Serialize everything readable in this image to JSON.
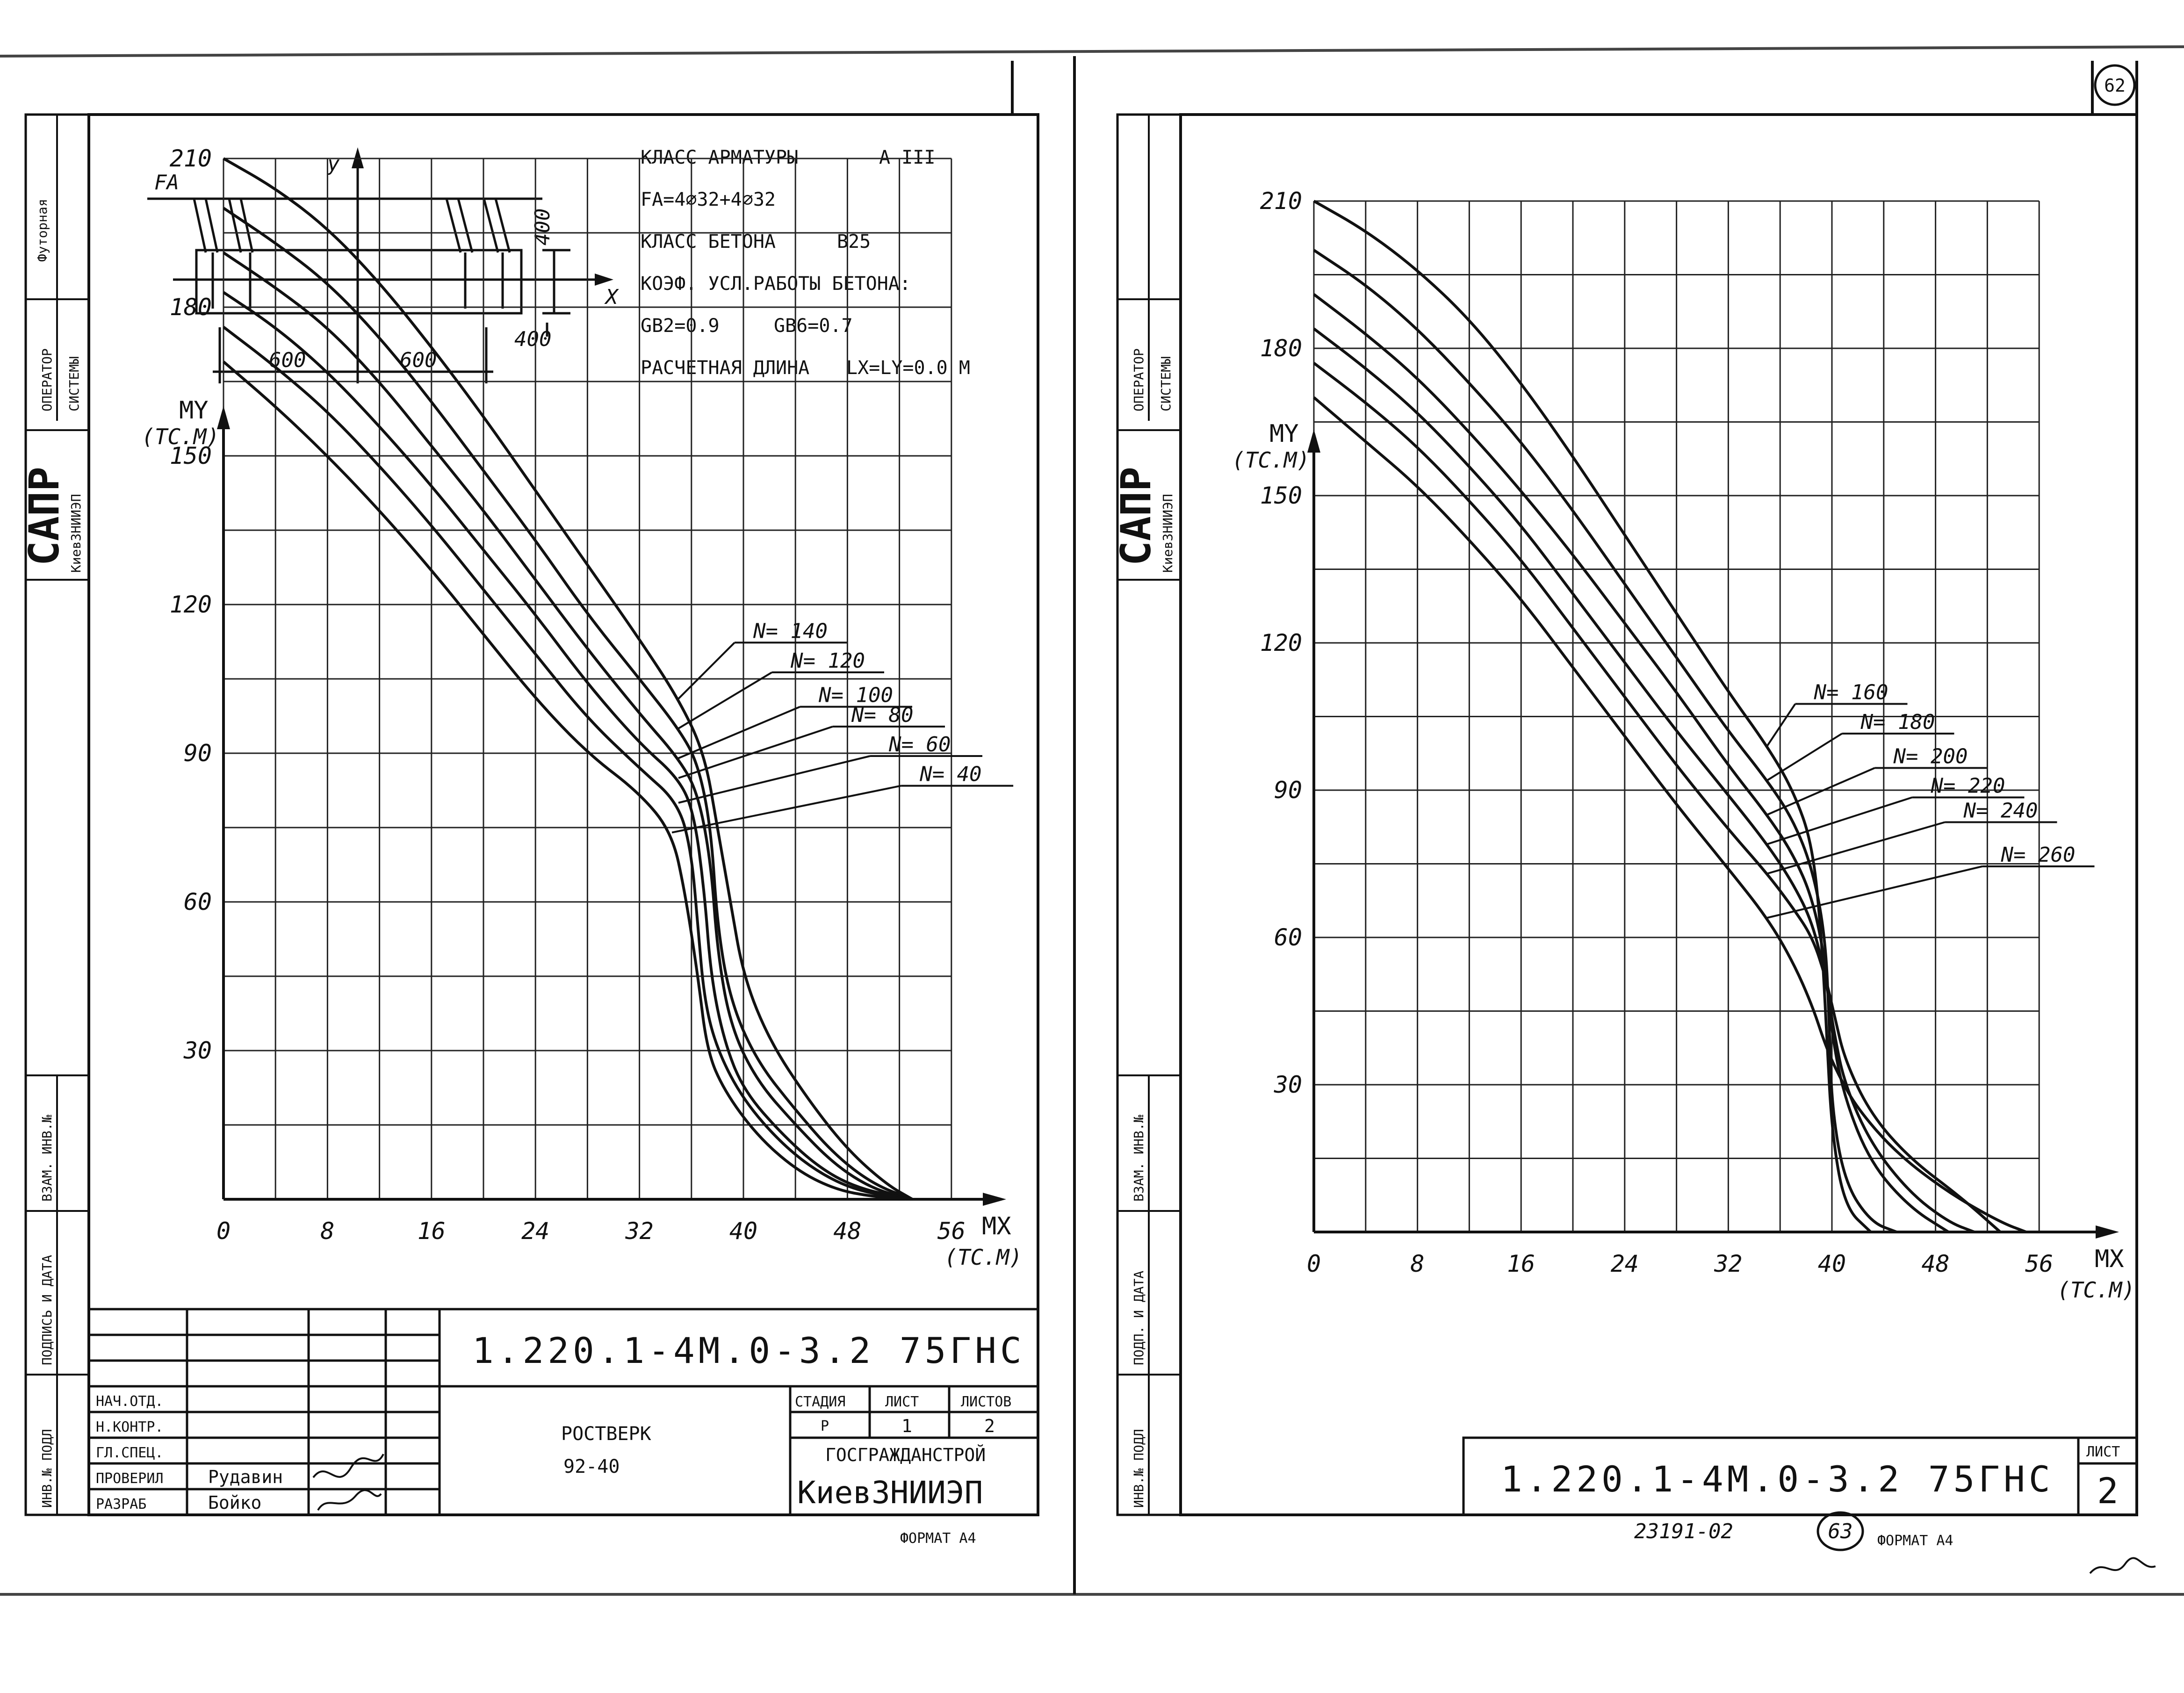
{
  "sheet_left": {
    "side_stamps": {
      "futornaya": "Футорная",
      "operator": "ОПЕРАТОР",
      "system": "СИСТЕМЫ",
      "sapr": "САПР",
      "institute": "КиевЗНИИЭП",
      "vzam_inv": "ВЗАМ. ИНВ.№",
      "podpis": "ПОДПИСЬ И ДАТА",
      "inv_podl": "ИНВ.№ ПОДЛ"
    },
    "section": {
      "fa_label": "FA",
      "y_label": "y",
      "x_label": "X",
      "dim_600_left": "600",
      "dim_600_right": "600",
      "dim_400_top": "400",
      "dim_400_bottom": "400"
    },
    "info": {
      "rebar_class": "КЛАСС АРМАТУРЫ",
      "rebar_class_value": "A III",
      "fa": "FA=4⌀32+4⌀32",
      "concrete_class": "КЛАСС БЕТОНА",
      "concrete_class_value": "B25",
      "coef": "КОЭФ. УСЛ.РАБОТЫ БЕТОНА:",
      "gb2": "GB2=0.9",
      "gb6": "GB6=0.7",
      "calc_length": "РАСЧЕТНАЯ ДЛИНА",
      "calc_length_value": "LX=LY=0.0 М"
    },
    "title_block": {
      "code": "1.220.1-4М.0-3.2 75ГНС",
      "roles": [
        "НАЧ.ОТД.",
        "Н.КОНТР.",
        "ГЛ.СПЕЦ.",
        "ПРОВЕРИЛ",
        "РАЗРАБ"
      ],
      "names": [
        "",
        "",
        "",
        "Рудавин",
        "Бойко"
      ],
      "stage_label": "СТАДИЯ",
      "sheet_label": "ЛИСТ",
      "sheets_label": "ЛИСТОВ",
      "stage_value": "Р",
      "sheet_value": "1",
      "sheets_value": "2",
      "item_name": "РОСТВЕРК",
      "item_code": "92-40",
      "org_top": "ГОСГРАЖДАНСТРОЙ",
      "org_bottom": "КиевЗНИИЭП",
      "format": "ФОРМАТ А4"
    }
  },
  "sheet_right": {
    "page_number": "62",
    "side_stamps": {
      "operator": "ОПЕРАТОР",
      "system": "СИСТЕМЫ",
      "sapr": "САПР",
      "institute": "КиевЗНИИЭП",
      "vzam_inv": "ВЗАМ. ИНВ.№",
      "podpis": "ПОДП. И ДАТА",
      "inv_podl": "ИНВ.№ ПОДЛ"
    },
    "title_block": {
      "code": "1.220.1-4М.0-3.2 75ГНС",
      "sheet_label": "ЛИСТ",
      "sheet_value": "2"
    },
    "footer": {
      "inv_number": "23191-02",
      "circled": "63",
      "format": "ФОРМАТ А4"
    }
  },
  "chart_data": [
    {
      "type": "line",
      "xlabel": "MX",
      "xunit": "(ТС.М)",
      "ylabel": "MY",
      "yunit": "(ТС.М)",
      "xlim": [
        0,
        56
      ],
      "ylim": [
        0,
        210
      ],
      "x_ticks": [
        0,
        8,
        16,
        24,
        32,
        40,
        48,
        56
      ],
      "y_ticks": [
        30,
        60,
        90,
        120,
        150,
        180,
        210
      ],
      "grid": true,
      "series": [
        {
          "name": "N=140",
          "label": "N= 140",
          "points": [
            [
              0,
              210
            ],
            [
              4,
              204
            ],
            [
              8,
              196
            ],
            [
              12,
              185
            ],
            [
              16,
              172
            ],
            [
              20,
              158
            ],
            [
              24,
              143
            ],
            [
              28,
              128
            ],
            [
              32,
              113
            ],
            [
              35,
              101
            ],
            [
              37,
              90
            ],
            [
              38,
              75
            ],
            [
              39,
              60
            ],
            [
              40,
              45
            ],
            [
              42,
              32
            ],
            [
              45,
              20
            ],
            [
              48,
              10
            ],
            [
              51,
              3
            ],
            [
              53,
              0
            ]
          ]
        },
        {
          "name": "N=120",
          "label": "N= 120",
          "points": [
            [
              0,
              200
            ],
            [
              4,
              193
            ],
            [
              8,
              185
            ],
            [
              12,
              174
            ],
            [
              16,
              161
            ],
            [
              20,
              147
            ],
            [
              24,
              133
            ],
            [
              28,
              118
            ],
            [
              32,
              105
            ],
            [
              35,
              95
            ],
            [
              36.5,
              88
            ],
            [
              37.5,
              75
            ],
            [
              38,
              55
            ],
            [
              39,
              40
            ],
            [
              41,
              28
            ],
            [
              44,
              18
            ],
            [
              47,
              9
            ],
            [
              50,
              3
            ],
            [
              53,
              0
            ]
          ]
        },
        {
          "name": "N=100",
          "label": "N= 100",
          "points": [
            [
              0,
              191
            ],
            [
              4,
              184
            ],
            [
              8,
              176
            ],
            [
              12,
              165
            ],
            [
              16,
              152
            ],
            [
              20,
              139
            ],
            [
              24,
              125
            ],
            [
              28,
              111
            ],
            [
              32,
              98
            ],
            [
              35,
              89
            ],
            [
              36.5,
              82
            ],
            [
              37.5,
              68
            ],
            [
              38,
              50
            ],
            [
              39,
              35
            ],
            [
              41,
              24
            ],
            [
              44,
              15
            ],
            [
              47,
              7
            ],
            [
              50,
              2
            ],
            [
              53,
              0
            ]
          ]
        },
        {
          "name": "N=80",
          "label": "N= 80",
          "points": [
            [
              0,
              183
            ],
            [
              4,
              176
            ],
            [
              8,
              167
            ],
            [
              12,
              156
            ],
            [
              16,
              144
            ],
            [
              20,
              131
            ],
            [
              24,
              118
            ],
            [
              28,
              104
            ],
            [
              32,
              92
            ],
            [
              35,
              85
            ],
            [
              36.2,
              78
            ],
            [
              37,
              62
            ],
            [
              37.5,
              45
            ],
            [
              38.5,
              32
            ],
            [
              40,
              22
            ],
            [
              43,
              13
            ],
            [
              46,
              6
            ],
            [
              49,
              2
            ],
            [
              53,
              0
            ]
          ]
        },
        {
          "name": "N=60",
          "label": "N= 60",
          "points": [
            [
              0,
              176
            ],
            [
              4,
              168
            ],
            [
              8,
              159
            ],
            [
              12,
              148
            ],
            [
              16,
              136
            ],
            [
              20,
              123
            ],
            [
              24,
              110
            ],
            [
              28,
              97
            ],
            [
              32,
              87
            ],
            [
              35,
              80
            ],
            [
              36,
              70
            ],
            [
              36.5,
              55
            ],
            [
              37,
              40
            ],
            [
              38,
              30
            ],
            [
              40,
              20
            ],
            [
              43,
              11
            ],
            [
              46,
              5
            ],
            [
              49,
              1.5
            ],
            [
              53,
              0
            ]
          ]
        },
        {
          "name": "N=40",
          "label": "N= 40",
          "points": [
            [
              0,
              169
            ],
            [
              4,
              160
            ],
            [
              8,
              150
            ],
            [
              12,
              139
            ],
            [
              16,
              127
            ],
            [
              20,
              114
            ],
            [
              24,
              101
            ],
            [
              28,
              90
            ],
            [
              32,
              82
            ],
            [
              34.5,
              74
            ],
            [
              35.5,
              62
            ],
            [
              36.5,
              45
            ],
            [
              37.2,
              30
            ],
            [
              38.5,
              22
            ],
            [
              41,
              13
            ],
            [
              44,
              6
            ],
            [
              47,
              2
            ],
            [
              50,
              0.5
            ],
            [
              53,
              0
            ]
          ]
        }
      ]
    },
    {
      "type": "line",
      "xlabel": "MX",
      "xunit": "(ТС.М)",
      "ylabel": "MY",
      "yunit": "(ТС.М)",
      "xlim": [
        0,
        56
      ],
      "ylim": [
        0,
        210
      ],
      "x_ticks": [
        0,
        8,
        16,
        24,
        32,
        40,
        48,
        56
      ],
      "y_ticks": [
        30,
        60,
        90,
        120,
        150,
        180,
        210
      ],
      "grid": true,
      "series": [
        {
          "name": "N=160",
          "label": "N= 160",
          "points": [
            [
              0,
              210
            ],
            [
              4,
              204
            ],
            [
              8,
              196
            ],
            [
              12,
              186
            ],
            [
              16,
              173
            ],
            [
              20,
              158
            ],
            [
              24,
              142
            ],
            [
              28,
              126
            ],
            [
              32,
              110
            ],
            [
              35,
              99
            ],
            [
              37,
              90
            ],
            [
              38.5,
              79
            ],
            [
              39.2,
              60
            ],
            [
              39.6,
              40
            ],
            [
              40,
              20
            ],
            [
              41,
              5
            ],
            [
              43,
              0
            ]
          ]
        },
        {
          "name": "N=180",
          "label": "N= 180",
          "points": [
            [
              0,
              200
            ],
            [
              4,
              193
            ],
            [
              8,
              184
            ],
            [
              12,
              173
            ],
            [
              16,
              161
            ],
            [
              20,
              147
            ],
            [
              24,
              132
            ],
            [
              28,
              117
            ],
            [
              32,
              102
            ],
            [
              35,
              92
            ],
            [
              37,
              84
            ],
            [
              38.5,
              74
            ],
            [
              39.5,
              60
            ],
            [
              39.8,
              42
            ],
            [
              40,
              25
            ],
            [
              41,
              10
            ],
            [
              43,
              2
            ],
            [
              45,
              0
            ]
          ]
        },
        {
          "name": "N=200",
          "label": "N= 200",
          "points": [
            [
              0,
              191
            ],
            [
              4,
              183
            ],
            [
              8,
              174
            ],
            [
              12,
              163
            ],
            [
              16,
              151
            ],
            [
              20,
              138
            ],
            [
              24,
              124
            ],
            [
              28,
              110
            ],
            [
              32,
              95
            ],
            [
              35,
              85
            ],
            [
              37,
              77
            ],
            [
              38.5,
              68
            ],
            [
              39.5,
              55
            ],
            [
              40,
              40
            ],
            [
              41,
              27
            ],
            [
              43,
              14
            ],
            [
              46,
              5
            ],
            [
              49,
              0
            ]
          ]
        },
        {
          "name": "N=220",
          "label": "N= 220",
          "points": [
            [
              0,
              184
            ],
            [
              4,
              176
            ],
            [
              8,
              167
            ],
            [
              12,
              156
            ],
            [
              16,
              144
            ],
            [
              20,
              130
            ],
            [
              24,
              116
            ],
            [
              28,
              102
            ],
            [
              32,
              89
            ],
            [
              35,
              79
            ],
            [
              37,
              71
            ],
            [
              38.5,
              63
            ],
            [
              39.5,
              52
            ],
            [
              40.2,
              40
            ],
            [
              41,
              30
            ],
            [
              43,
              18
            ],
            [
              46,
              8
            ],
            [
              49,
              2
            ],
            [
              51,
              0
            ]
          ]
        },
        {
          "name": "N=240",
          "label": "N= 240",
          "points": [
            [
              0,
              177
            ],
            [
              4,
              169
            ],
            [
              8,
              160
            ],
            [
              12,
              149
            ],
            [
              16,
              137
            ],
            [
              20,
              123
            ],
            [
              24,
              109
            ],
            [
              28,
              95
            ],
            [
              32,
              82
            ],
            [
              35,
              73
            ],
            [
              37,
              66
            ],
            [
              38.5,
              60
            ],
            [
              39.5,
              52
            ],
            [
              40.2,
              44
            ],
            [
              41,
              35
            ],
            [
              43,
              24
            ],
            [
              46,
              15
            ],
            [
              50,
              7
            ],
            [
              53,
              0
            ]
          ]
        },
        {
          "name": "N=260",
          "label": "N= 260",
          "points": [
            [
              0,
              170
            ],
            [
              4,
              161
            ],
            [
              8,
              152
            ],
            [
              12,
              141
            ],
            [
              16,
              129
            ],
            [
              20,
              115
            ],
            [
              24,
              101
            ],
            [
              28,
              87
            ],
            [
              32,
              74
            ],
            [
              35,
              64
            ],
            [
              37,
              55
            ],
            [
              38.5,
              46
            ],
            [
              39.5,
              38
            ],
            [
              40.5,
              32
            ],
            [
              42,
              25
            ],
            [
              45,
              16
            ],
            [
              49,
              8
            ],
            [
              53,
              2
            ],
            [
              55,
              0
            ]
          ]
        }
      ]
    }
  ]
}
